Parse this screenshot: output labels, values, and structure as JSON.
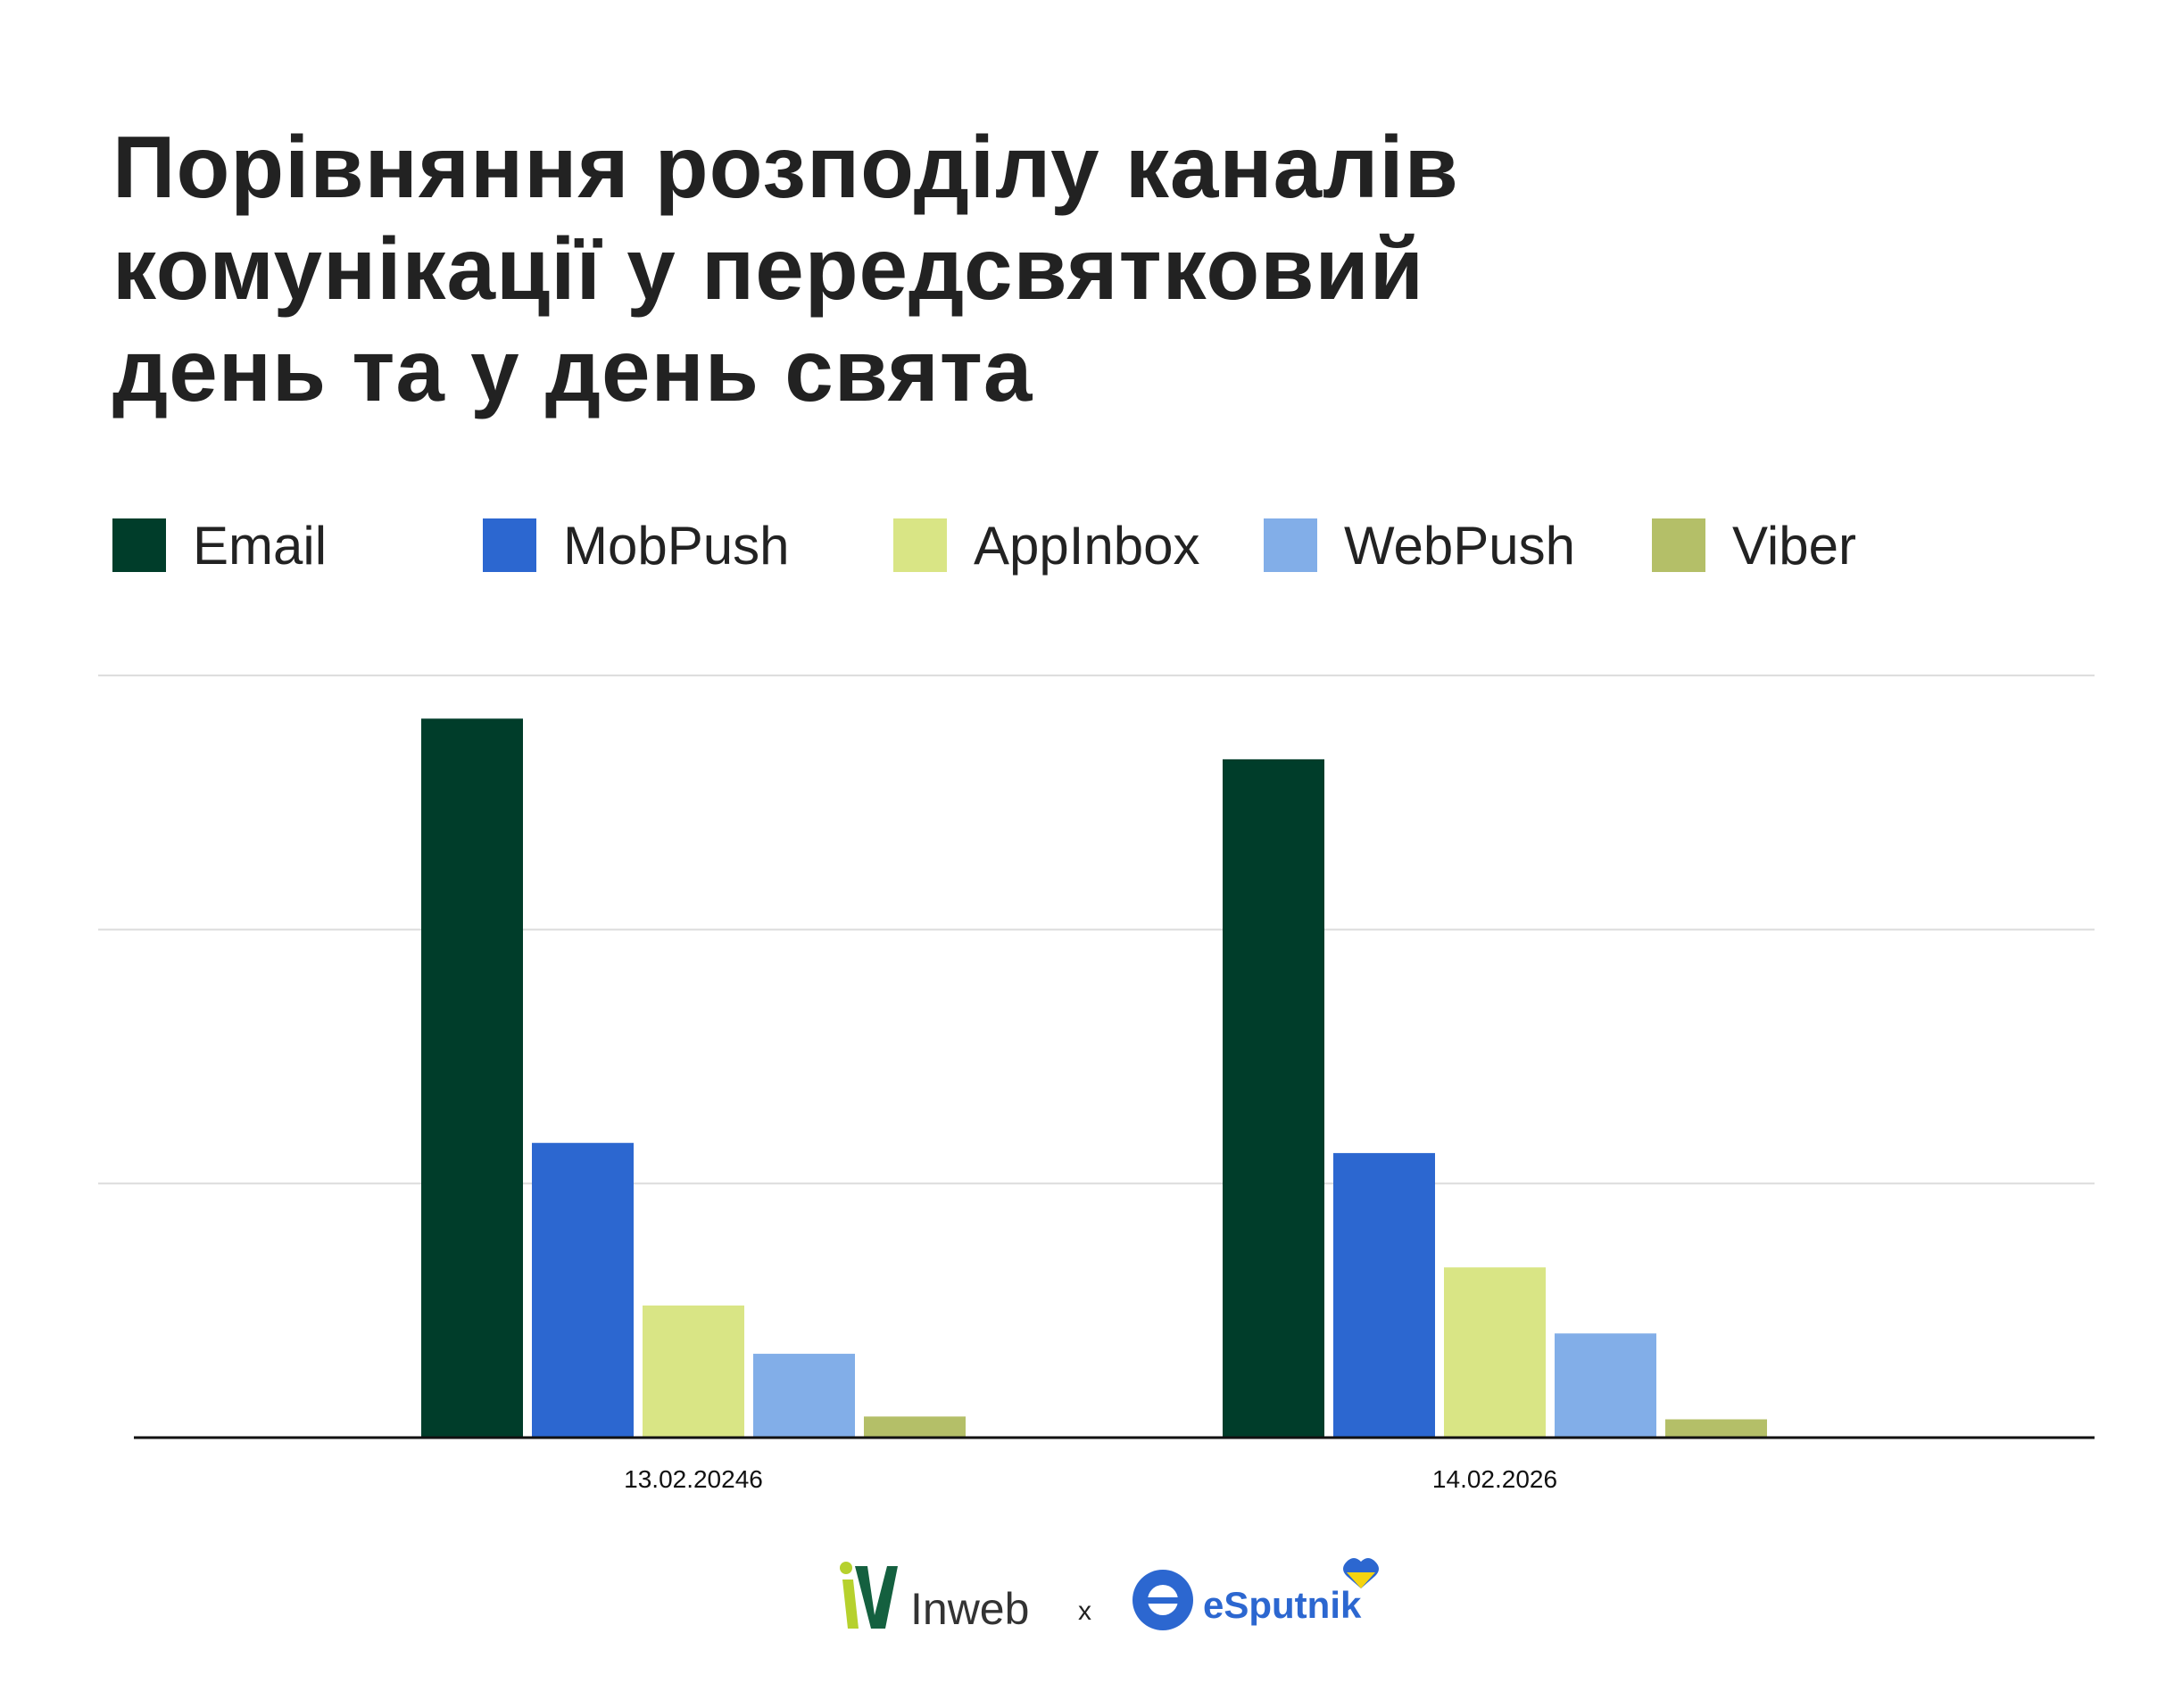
{
  "title_lines": [
    "Порівняння розподілу каналів",
    "комунікації у передсвятковий",
    "день та у день свята"
  ],
  "chart_data": {
    "type": "bar",
    "title": "Порівняння розподілу каналів комунікації у передсвятковий день та у день свята",
    "categories": [
      "13.02.20246",
      "14.02.2026"
    ],
    "series": [
      {
        "name": "Email",
        "color": "#003d2a",
        "values": [
          2.83,
          2.67
        ]
      },
      {
        "name": "MobPush",
        "color": "#2c67d0",
        "values": [
          1.16,
          1.12
        ]
      },
      {
        "name": "AppInbox",
        "color": "#d9e585",
        "values": [
          0.52,
          0.67
        ]
      },
      {
        "name": "WebPush",
        "color": "#82aee8",
        "values": [
          0.33,
          0.41
        ]
      },
      {
        "name": "Viber",
        "color": "#b4bf68",
        "values": [
          0.083,
          0.072
        ]
      }
    ],
    "ylim": [
      0,
      3
    ],
    "gridlines": [
      1,
      2,
      3
    ],
    "grid": true,
    "y_tick_labels_shown": false,
    "legend_placement": "top-left",
    "xlabel": "",
    "ylabel": ""
  },
  "footer": {
    "logo_left": "Inweb",
    "separator": "x",
    "logo_right": "eSputnik"
  }
}
